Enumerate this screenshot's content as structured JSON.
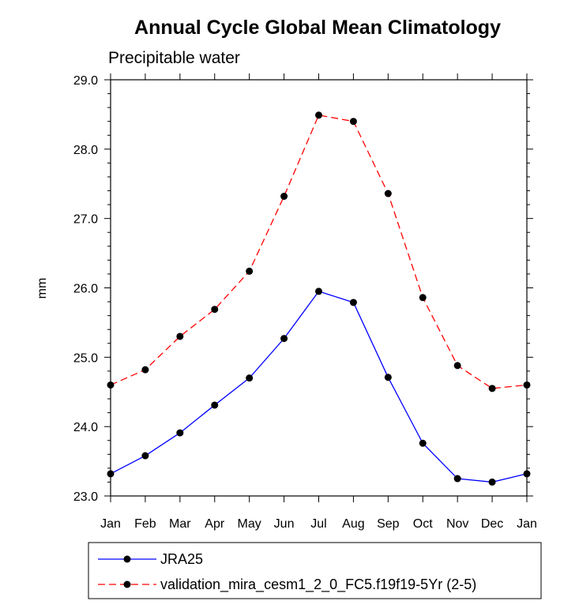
{
  "chart_data": {
    "type": "line",
    "title": "Annual Cycle Global Mean Climatology",
    "subtitle": "Precipitable water",
    "xlabel": "",
    "ylabel": "mm",
    "categories": [
      "Jan",
      "Feb",
      "Mar",
      "Apr",
      "May",
      "Jun",
      "Jul",
      "Aug",
      "Sep",
      "Oct",
      "Nov",
      "Dec",
      "Jan"
    ],
    "ylim": [
      23.0,
      29.0
    ],
    "yticks": [
      "23.0",
      "24.0",
      "25.0",
      "26.0",
      "27.0",
      "28.0",
      "29.0"
    ],
    "grid": false,
    "legend_position": "bottom",
    "series": [
      {
        "name": "JRA25",
        "color": "#0000ff",
        "line_style": "solid",
        "marker": "filled-circle",
        "values": [
          23.32,
          23.58,
          23.91,
          24.31,
          24.7,
          25.27,
          25.95,
          25.79,
          24.71,
          23.76,
          23.25,
          23.2,
          23.32
        ]
      },
      {
        "name": "validation_mira_cesm1_2_0_FC5.f19f19-5Yr (2-5)",
        "color": "#ff0000",
        "line_style": "dashed",
        "marker": "filled-circle",
        "values": [
          24.6,
          24.82,
          25.3,
          25.69,
          26.24,
          27.32,
          28.49,
          28.4,
          27.36,
          25.86,
          24.88,
          24.55,
          24.6
        ]
      }
    ]
  }
}
